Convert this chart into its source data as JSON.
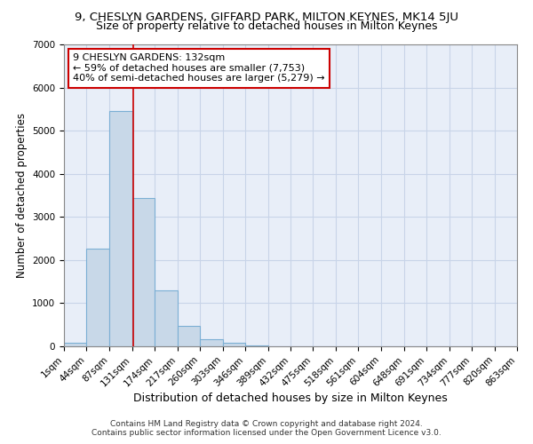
{
  "title": "9, CHESLYN GARDENS, GIFFARD PARK, MILTON KEYNES, MK14 5JU",
  "subtitle": "Size of property relative to detached houses in Milton Keynes",
  "xlabel": "Distribution of detached houses by size in Milton Keynes",
  "ylabel": "Number of detached properties",
  "footnote1": "Contains HM Land Registry data © Crown copyright and database right 2024.",
  "footnote2": "Contains public sector information licensed under the Open Government Licence v3.0.",
  "annotation_line1": "9 CHESLYN GARDENS: 132sqm",
  "annotation_line2": "← 59% of detached houses are smaller (7,753)",
  "annotation_line3": "40% of semi-detached houses are larger (5,279) →",
  "bin_edges": [
    1,
    44,
    87,
    131,
    174,
    217,
    260,
    303,
    346,
    389,
    432,
    475,
    518,
    561,
    604,
    648,
    691,
    734,
    777,
    820,
    863
  ],
  "bar_heights": [
    75,
    2275,
    5450,
    3430,
    1300,
    475,
    170,
    85,
    30,
    10,
    5,
    5,
    0,
    0,
    0,
    0,
    0,
    0,
    0,
    0
  ],
  "bar_facecolor": "#C8D8E8",
  "bar_edgecolor": "#7BAFD4",
  "bar_linewidth": 0.8,
  "vline_color": "#CC0000",
  "vline_x": 132,
  "box_edgecolor": "#CC0000",
  "box_facecolor": "white",
  "ylim": [
    0,
    7000
  ],
  "yticks": [
    0,
    1000,
    2000,
    3000,
    4000,
    5000,
    6000,
    7000
  ],
  "grid_color": "#C8D4E8",
  "background_color": "#E8EEF8",
  "title_fontsize": 9.5,
  "subtitle_fontsize": 9,
  "xlabel_fontsize": 9,
  "ylabel_fontsize": 8.5,
  "tick_fontsize": 7.5,
  "annotation_fontsize": 8,
  "footnote_fontsize": 6.5
}
